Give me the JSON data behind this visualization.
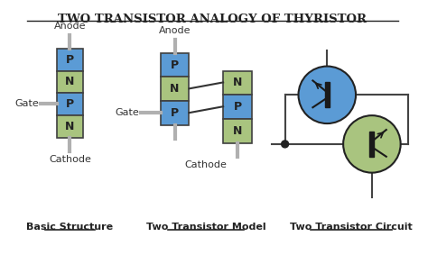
{
  "title": "TWO TRANSISTOR ANALOGY OF THYRISTOR",
  "bg_color": "#ffffff",
  "p_color": "#5b9bd5",
  "n_color": "#a9c47f",
  "label1": "Basic Structure",
  "label2": "Two Transistor Model",
  "label3": "Two Transistor Circuit",
  "anode_text": "Anode",
  "cathode_text": "Cathode",
  "gate_text": "Gate",
  "wire_color": "#b0b0b0",
  "box_edge_color": "#404040",
  "transistor1_color": "#5b9bd5",
  "transistor2_color": "#a9c47f"
}
